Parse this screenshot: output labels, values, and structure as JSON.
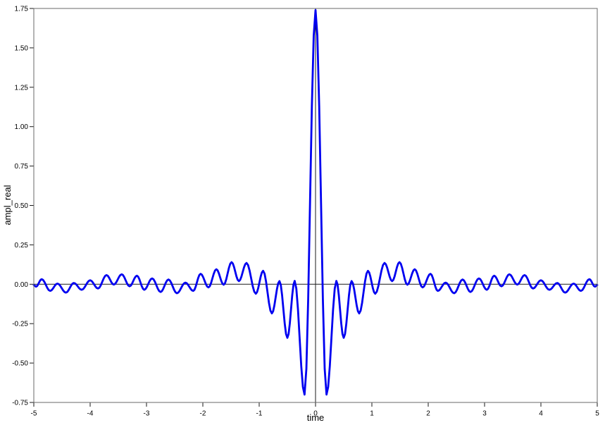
{
  "window": {
    "background": "#ffffff"
  },
  "chart_data": {
    "type": "line",
    "title": "",
    "xlabel": "time",
    "ylabel": "ampl_real",
    "xlim": [
      -5,
      5
    ],
    "ylim": [
      -0.75,
      1.75
    ],
    "grid": false,
    "legend": "none",
    "zero_line": true,
    "center_vertical_line_x": 0,
    "line_color": "#0000f0",
    "frame_color": "#6a6a6a",
    "axis_line_color": "#1a1a1a",
    "tick_color": "#1a1a1a",
    "text_color": "#000000",
    "x_ticks": [
      {
        "v": -5,
        "label": "-5"
      },
      {
        "v": -4,
        "label": "-4"
      },
      {
        "v": -3,
        "label": "-3"
      },
      {
        "v": -2,
        "label": "-2"
      },
      {
        "v": -1,
        "label": "-1"
      },
      {
        "v": 0,
        "label": "0"
      },
      {
        "v": 1,
        "label": "1"
      },
      {
        "v": 2,
        "label": "2"
      },
      {
        "v": 3,
        "label": "3"
      },
      {
        "v": 4,
        "label": "4"
      },
      {
        "v": 5,
        "label": "5"
      }
    ],
    "y_ticks": [
      {
        "v": 1.75,
        "label": "1.75"
      },
      {
        "v": 1.5,
        "label": "1.50"
      },
      {
        "v": 1.25,
        "label": "1.25"
      },
      {
        "v": 1.0,
        "label": "1.00"
      },
      {
        "v": 0.75,
        "label": "0.75"
      },
      {
        "v": 0.5,
        "label": "0.50"
      },
      {
        "v": 0.25,
        "label": "0.25"
      },
      {
        "v": 0.0,
        "label": "0.00"
      },
      {
        "v": -0.25,
        "label": "-0.25"
      },
      {
        "v": -0.5,
        "label": "-0.50"
      },
      {
        "v": -0.75,
        "label": "-0.75"
      }
    ],
    "series": [
      {
        "name": "ampl_real",
        "interpolation": "cosine-between-extrema",
        "points_extrema": [
          [
            -5.0,
            -0.005
          ],
          [
            -4.96,
            -0.015
          ],
          [
            -4.86,
            0.032
          ],
          [
            -4.71,
            -0.042
          ],
          [
            -4.58,
            0.004
          ],
          [
            -4.43,
            -0.053
          ],
          [
            -4.29,
            0.008
          ],
          [
            -4.15,
            -0.035
          ],
          [
            -4.0,
            0.025
          ],
          [
            -3.86,
            -0.027
          ],
          [
            -3.71,
            0.058
          ],
          [
            -3.58,
            -0.002
          ],
          [
            -3.44,
            0.063
          ],
          [
            -3.3,
            -0.013
          ],
          [
            -3.17,
            0.054
          ],
          [
            -3.04,
            -0.035
          ],
          [
            -2.9,
            0.037
          ],
          [
            -2.75,
            -0.049
          ],
          [
            -2.61,
            0.03
          ],
          [
            -2.46,
            -0.057
          ],
          [
            -2.31,
            0.01
          ],
          [
            -2.17,
            -0.042
          ],
          [
            -2.04,
            0.066
          ],
          [
            -1.9,
            -0.02
          ],
          [
            -1.76,
            0.095
          ],
          [
            -1.63,
            -0.003
          ],
          [
            -1.49,
            0.14
          ],
          [
            -1.36,
            0.02
          ],
          [
            -1.225,
            0.135
          ],
          [
            -1.06,
            -0.06
          ],
          [
            -0.93,
            0.085
          ],
          [
            -0.775,
            -0.185
          ],
          [
            -0.64,
            0.02
          ],
          [
            -0.5,
            -0.34
          ],
          [
            -0.37,
            0.021
          ],
          [
            -0.195,
            -0.7
          ],
          [
            0.0,
            1.74
          ],
          [
            0.195,
            -0.7
          ],
          [
            0.37,
            0.021
          ],
          [
            0.5,
            -0.34
          ],
          [
            0.64,
            0.02
          ],
          [
            0.775,
            -0.185
          ],
          [
            0.93,
            0.085
          ],
          [
            1.06,
            -0.06
          ],
          [
            1.225,
            0.135
          ],
          [
            1.36,
            0.02
          ],
          [
            1.49,
            0.14
          ],
          [
            1.63,
            -0.003
          ],
          [
            1.76,
            0.095
          ],
          [
            1.9,
            -0.02
          ],
          [
            2.04,
            0.066
          ],
          [
            2.17,
            -0.042
          ],
          [
            2.31,
            0.01
          ],
          [
            2.46,
            -0.057
          ],
          [
            2.61,
            0.03
          ],
          [
            2.75,
            -0.049
          ],
          [
            2.9,
            0.037
          ],
          [
            3.04,
            -0.035
          ],
          [
            3.17,
            0.054
          ],
          [
            3.3,
            -0.013
          ],
          [
            3.44,
            0.063
          ],
          [
            3.58,
            -0.002
          ],
          [
            3.71,
            0.058
          ],
          [
            3.86,
            -0.027
          ],
          [
            4.0,
            0.025
          ],
          [
            4.15,
            -0.035
          ],
          [
            4.29,
            0.008
          ],
          [
            4.43,
            -0.053
          ],
          [
            4.58,
            0.004
          ],
          [
            4.71,
            -0.042
          ],
          [
            4.86,
            0.032
          ],
          [
            4.96,
            -0.015
          ],
          [
            5.0,
            -0.005
          ]
        ]
      }
    ]
  }
}
